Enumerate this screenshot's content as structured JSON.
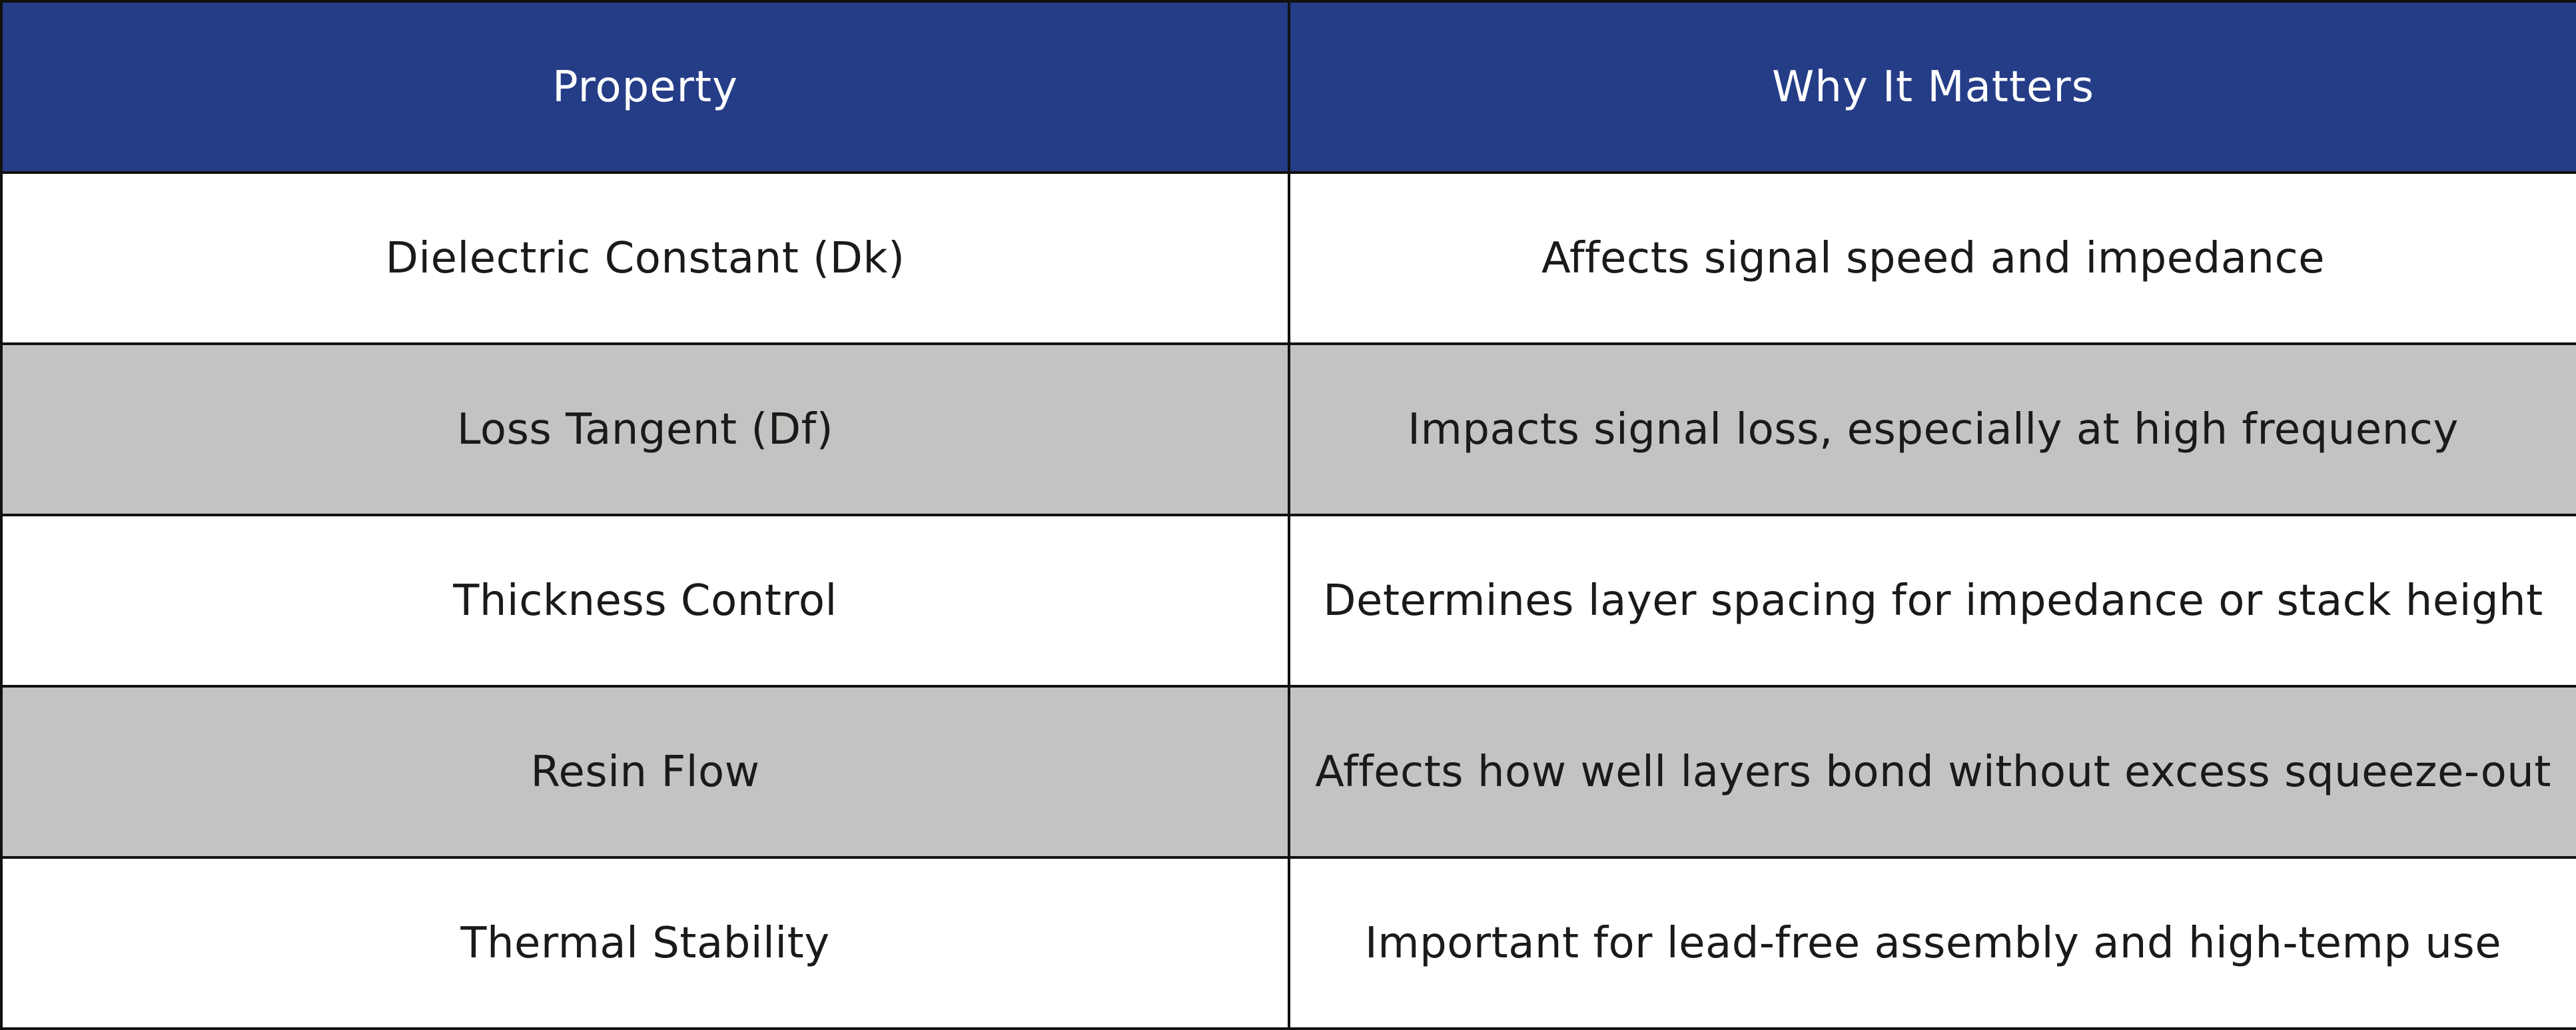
{
  "table": {
    "header": {
      "property_label": "Property",
      "why_label": "Why It Matters"
    },
    "rows": [
      {
        "property": "Dielectric Constant (Dk)",
        "why": "Affects signal speed and impedance"
      },
      {
        "property": "Loss Tangent (Df)",
        "why": "Impacts signal loss, especially at high frequency"
      },
      {
        "property": "Thickness Control",
        "why": "Determines layer spacing for impedance or stack height"
      },
      {
        "property": "Resin Flow",
        "why": "Affects how well layers bond without excess squeeze-out"
      },
      {
        "property": "Thermal Stability",
        "why": "Important for lead-free assembly and high-temp use"
      }
    ]
  },
  "colors": {
    "header_bg": "#253d87",
    "header_text": "#ffffff",
    "row_alt_bg": "#c4c3c1",
    "row_bg": "#ffffff",
    "border": "#111111"
  }
}
